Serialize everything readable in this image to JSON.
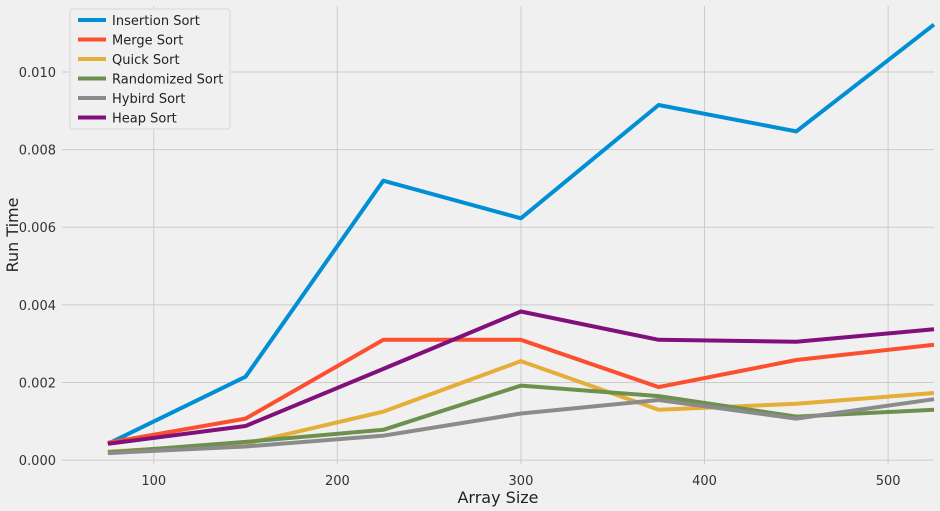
{
  "chart_data": {
    "type": "line",
    "title": "",
    "xlabel": "Array Size",
    "ylabel": "Run Time",
    "x": [
      75,
      150,
      225,
      300,
      375,
      450,
      525
    ],
    "xlim": [
      50,
      525
    ],
    "ylim": [
      -0.0001,
      0.0117
    ],
    "xticks": [
      100,
      200,
      300,
      400,
      500
    ],
    "yticks": [
      0.0,
      0.002,
      0.004,
      0.006,
      0.008,
      0.01
    ],
    "xtick_labels": [
      "100",
      "200",
      "300",
      "400",
      "500"
    ],
    "ytick_labels": [
      "0.000",
      "0.002",
      "0.004",
      "0.006",
      "0.008",
      "0.010"
    ],
    "grid": true,
    "legend_position": "top-left",
    "series": [
      {
        "name": "Insertion Sort",
        "color": "#008fd5",
        "values": [
          0.00042,
          0.00215,
          0.0072,
          0.00623,
          0.00915,
          0.00847,
          0.01122
        ]
      },
      {
        "name": "Merge Sort",
        "color": "#fc4f30",
        "values": [
          0.00045,
          0.00107,
          0.0031,
          0.0031,
          0.00188,
          0.00258,
          0.00297
        ]
      },
      {
        "name": "Quick Sort",
        "color": "#e5ae38",
        "values": [
          0.00022,
          0.00042,
          0.00125,
          0.00255,
          0.0013,
          0.00145,
          0.00173
        ]
      },
      {
        "name": "Randomized Sort",
        "color": "#6d904f",
        "values": [
          0.0002,
          0.00047,
          0.00078,
          0.00192,
          0.00165,
          0.00112,
          0.0013
        ]
      },
      {
        "name": "Hybird Sort",
        "color": "#8b8b8b",
        "values": [
          0.00018,
          0.00035,
          0.00063,
          0.0012,
          0.00155,
          0.00107,
          0.00157
        ]
      },
      {
        "name": "Heap Sort",
        "color": "#810f7c",
        "values": [
          0.00042,
          0.00088,
          0.00235,
          0.00383,
          0.0031,
          0.00305,
          0.00337
        ]
      }
    ]
  }
}
